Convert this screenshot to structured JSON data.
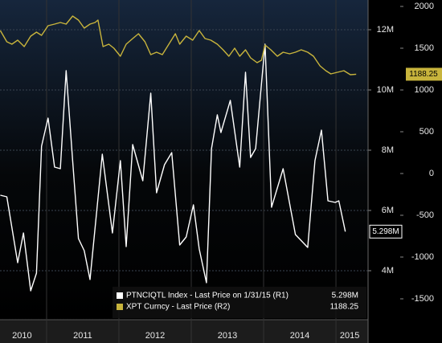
{
  "chart_data": {
    "type": "line",
    "xlim": [
      2010.356,
      2015.444
    ],
    "xticks": [
      {
        "value": 2010.66,
        "label": "2010"
      },
      {
        "value": 2011.5,
        "label": "2011"
      },
      {
        "value": 2012.5,
        "label": "2012"
      },
      {
        "value": 2013.5,
        "label": "2013"
      },
      {
        "value": 2014.5,
        "label": "2014"
      },
      {
        "value": 2015.19,
        "label": "2015"
      }
    ],
    "ylim": [
      2.373,
      12.987
    ],
    "yticks": [
      {
        "value": 4,
        "label": "4M"
      },
      {
        "value": 6,
        "label": "6M"
      },
      {
        "value": 8,
        "label": "8M"
      },
      {
        "value": 10,
        "label": "10M"
      },
      {
        "value": 12,
        "label": "12M"
      }
    ],
    "y2lim": [
      -1750,
      2077
    ],
    "y2ticks": [
      -1500,
      -1000,
      -500,
      0,
      500,
      1000,
      1500,
      2000
    ],
    "grid": true,
    "series": [
      {
        "name": "PTNCIQTL Index - Last Price on 1/31/15 (R1)",
        "color": "#ffffff",
        "axis": "y",
        "last_value_label": "5.298M",
        "x": [
          2010.36,
          2010.45,
          2010.6,
          2010.68,
          2010.78,
          2010.86,
          2010.93,
          2011.02,
          2011.11,
          2011.19,
          2011.27,
          2011.36,
          2011.44,
          2011.52,
          2011.6,
          2011.77,
          2011.91,
          2012.02,
          2012.1,
          2012.19,
          2012.33,
          2012.44,
          2012.52,
          2012.63,
          2012.73,
          2012.84,
          2012.93,
          2013.03,
          2013.11,
          2013.21,
          2013.28,
          2013.36,
          2013.41,
          2013.54,
          2013.67,
          2013.75,
          2013.82,
          2013.89,
          2014.02,
          2014.11,
          2014.27,
          2014.44,
          2014.61,
          2014.71,
          2014.8,
          2014.89,
          2014.99,
          2015.04,
          2015.13
        ],
        "values": [
          6.507,
          6.453,
          4.267,
          5.253,
          3.333,
          3.92,
          8.133,
          9.067,
          7.44,
          7.387,
          10.64,
          7.653,
          5.067,
          4.667,
          3.707,
          7.867,
          5.253,
          7.653,
          4.8,
          8.187,
          6.987,
          9.893,
          6.587,
          7.52,
          7.92,
          4.853,
          5.12,
          6.187,
          4.72,
          3.6,
          8.053,
          9.173,
          8.587,
          9.653,
          7.44,
          10.587,
          7.76,
          8.053,
          11.52,
          6.107,
          7.387,
          5.2,
          4.773,
          7.653,
          8.667,
          6.32,
          6.267,
          6.32,
          5.298
        ]
      },
      {
        "name": "XPT Curncy - Last Price (R2)",
        "color": "#c8b43c",
        "axis": "y2",
        "x": [
          2010.36,
          2010.45,
          2010.52,
          2010.6,
          2010.69,
          2010.78,
          2010.86,
          2010.93,
          2011.02,
          2011.11,
          2011.19,
          2011.27,
          2011.36,
          2011.44,
          2011.52,
          2011.6,
          2011.67,
          2011.71,
          2011.78,
          2011.86,
          2011.93,
          2012.02,
          2012.1,
          2012.19,
          2012.27,
          2012.36,
          2012.44,
          2012.52,
          2012.6,
          2012.69,
          2012.78,
          2012.84,
          2012.93,
          2013.02,
          2013.11,
          2013.19,
          2013.27,
          2013.36,
          2013.44,
          2013.52,
          2013.6,
          2013.67,
          2013.75,
          2013.82,
          2013.91,
          2013.97,
          2014.02,
          2014.1,
          2014.19,
          2014.27,
          2014.36,
          2014.44,
          2014.52,
          2014.61,
          2014.69,
          2014.78,
          2014.86,
          2014.93,
          2015.02,
          2015.11,
          2015.2,
          2015.28
        ],
        "values": [
          1712,
          1577,
          1548,
          1596,
          1519,
          1644,
          1692,
          1654,
          1769,
          1789,
          1808,
          1789,
          1885,
          1837,
          1740,
          1789,
          1808,
          1837,
          1519,
          1548,
          1500,
          1404,
          1548,
          1615,
          1673,
          1577,
          1423,
          1452,
          1423,
          1548,
          1673,
          1548,
          1644,
          1596,
          1712,
          1615,
          1596,
          1548,
          1481,
          1404,
          1500,
          1404,
          1481,
          1385,
          1327,
          1356,
          1539,
          1481,
          1404,
          1452,
          1433,
          1452,
          1481,
          1452,
          1404,
          1289,
          1231,
          1192,
          1212,
          1231,
          1183,
          1188.25
        ]
      }
    ]
  }
}
